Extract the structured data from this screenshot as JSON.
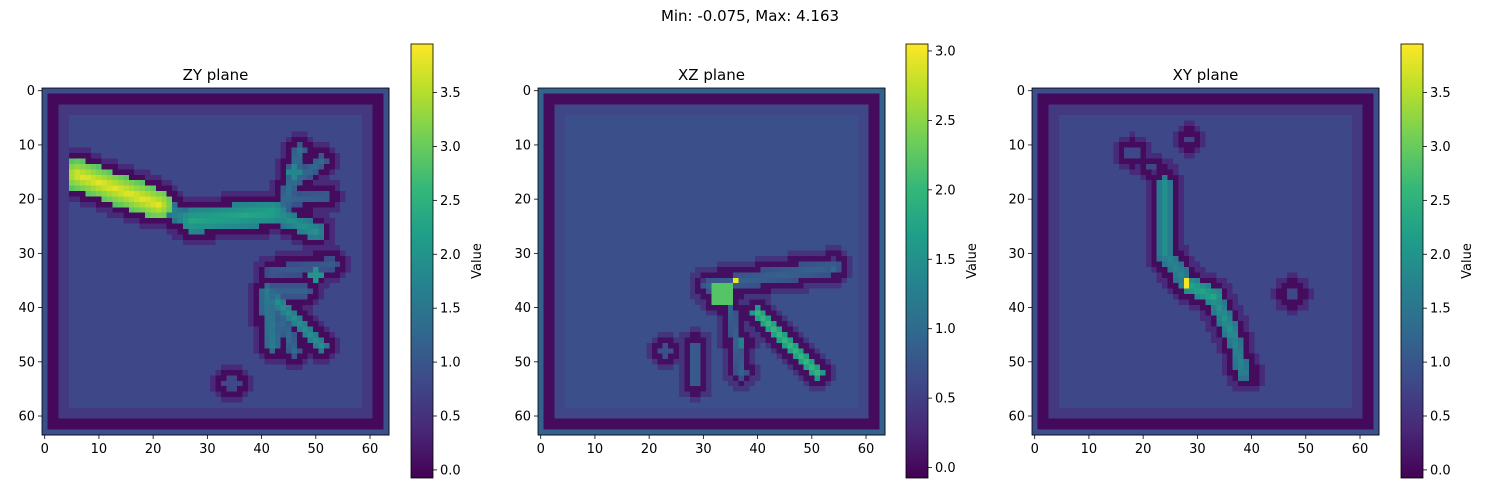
{
  "suptitle": "Min: -0.075, Max: 4.163",
  "colormap": {
    "name": "viridis",
    "stops": [
      "#440154",
      "#482878",
      "#3e4989",
      "#31688e",
      "#26828e",
      "#1f9e89",
      "#35b779",
      "#6ece58",
      "#b5de2b",
      "#fde725"
    ]
  },
  "chart_data": [
    {
      "type": "heatmap",
      "title": "ZY plane",
      "grid_size": 64,
      "axis_range": [
        0,
        63
      ],
      "x_ticks": [
        "0",
        "10",
        "20",
        "30",
        "40",
        "50",
        "60"
      ],
      "y_ticks": [
        "0",
        "10",
        "20",
        "30",
        "40",
        "50",
        "60"
      ],
      "value_range": [
        -0.075,
        3.95
      ],
      "background_value": 0.8,
      "colorbar": {
        "label": "Value",
        "ticks": [
          "0.0",
          "0.5",
          "1.0",
          "1.5",
          "2.0",
          "2.5",
          "3.0",
          "3.5"
        ]
      },
      "features": [
        {
          "x1": 6,
          "y1": 15.5,
          "x2": 21,
          "y2": 21,
          "w": 2.8,
          "v": 3.8
        },
        {
          "x1": 21,
          "y1": 21,
          "x2": 27,
          "y2": 24,
          "w": 1.6,
          "v": 1.8
        },
        {
          "x1": 27,
          "y1": 24,
          "x2": 42,
          "y2": 22.5,
          "w": 2.2,
          "v": 2.3
        },
        {
          "x1": 42,
          "y1": 22.5,
          "x2": 50,
          "y2": 26,
          "w": 1.5,
          "v": 2.0
        },
        {
          "x1": 44,
          "y1": 22,
          "x2": 47,
          "y2": 11,
          "w": 1.2,
          "v": 1.4
        },
        {
          "x1": 46,
          "y1": 17,
          "x2": 51,
          "y2": 13,
          "w": 1.1,
          "v": 1.3
        },
        {
          "x1": 46,
          "y1": 20,
          "x2": 52,
          "y2": 19.5,
          "w": 1.1,
          "v": 1.2
        },
        {
          "x1": 42,
          "y1": 33.5,
          "x2": 53,
          "y2": 32,
          "w": 1.2,
          "v": 1.1
        },
        {
          "x1": 41,
          "y1": 37,
          "x2": 48,
          "y2": 37,
          "w": 1.3,
          "v": 1.2
        },
        {
          "x1": 41,
          "y1": 37,
          "x2": 42,
          "y2": 47,
          "w": 1.4,
          "v": 1.6
        },
        {
          "x1": 43,
          "y1": 39,
          "x2": 51,
          "y2": 47,
          "w": 1.3,
          "v": 1.9
        },
        {
          "x1": 43,
          "y1": 40,
          "x2": 46,
          "y2": 48,
          "w": 1.1,
          "v": 1.3
        }
      ],
      "blobs": [
        {
          "x": 34.5,
          "y": 54,
          "r": 1.5,
          "v": 0.3
        },
        {
          "x": 46,
          "y": 15,
          "r": 1.2,
          "v": 1.8
        },
        {
          "x": 50,
          "y": 34,
          "r": 1.0,
          "v": 2.0
        }
      ]
    },
    {
      "type": "heatmap",
      "title": "XZ plane",
      "grid_size": 64,
      "axis_range": [
        0,
        63
      ],
      "x_ticks": [
        "0",
        "10",
        "20",
        "30",
        "40",
        "50",
        "60"
      ],
      "y_ticks": [
        "0",
        "10",
        "20",
        "30",
        "40",
        "50",
        "60"
      ],
      "value_range": [
        -0.075,
        3.05
      ],
      "background_value": 0.7,
      "colorbar": {
        "label": "Value",
        "ticks": [
          "0.0",
          "0.5",
          "1.0",
          "1.5",
          "2.0",
          "2.5",
          "3.0"
        ]
      },
      "features": [
        {
          "x1": 31,
          "y1": 36,
          "x2": 54,
          "y2": 32.5,
          "w": 1.5,
          "v": 0.9
        },
        {
          "x1": 40,
          "y1": 41,
          "x2": 51,
          "y2": 52,
          "w": 1.2,
          "v": 2.0
        },
        {
          "x1": 35,
          "y1": 40,
          "x2": 37,
          "y2": 52,
          "w": 1.0,
          "v": 0.9
        },
        {
          "x1": 28.5,
          "y1": 47,
          "x2": 28.5,
          "y2": 54,
          "w": 1.1,
          "v": 0.9
        }
      ],
      "blobs": [
        {
          "x": 33.5,
          "y": 37.5,
          "r": 2.4,
          "v": 2.2
        },
        {
          "x": 36,
          "y": 35,
          "r": 0.9,
          "v": 3.0
        },
        {
          "x": 23,
          "y": 48,
          "r": 1.3,
          "v": 0.5
        },
        {
          "x": 37,
          "y": 46.5,
          "r": 1.0,
          "v": 1.3
        },
        {
          "x": 54,
          "y": 33,
          "r": 0.8,
          "v": 1.0
        }
      ]
    },
    {
      "type": "heatmap",
      "title": "XY plane",
      "grid_size": 64,
      "axis_range": [
        0,
        63
      ],
      "x_ticks": [
        "0",
        "10",
        "20",
        "30",
        "40",
        "50",
        "60"
      ],
      "y_ticks": [
        "0",
        "10",
        "20",
        "30",
        "40",
        "50",
        "60"
      ],
      "value_range": [
        -0.075,
        3.95
      ],
      "background_value": 0.8,
      "colorbar": {
        "label": "Value",
        "ticks": [
          "0.0",
          "0.5",
          "1.0",
          "1.5",
          "2.0",
          "2.5",
          "3.0",
          "3.5"
        ]
      },
      "features": [
        {
          "x1": 24,
          "y1": 17,
          "x2": 24,
          "y2": 30,
          "w": 1.4,
          "v": 1.9
        },
        {
          "x1": 24,
          "y1": 30,
          "x2": 28.5,
          "y2": 36,
          "w": 1.6,
          "v": 1.8
        },
        {
          "x1": 28.5,
          "y1": 36,
          "x2": 33,
          "y2": 38,
          "w": 1.6,
          "v": 2.3
        },
        {
          "x1": 33,
          "y1": 38,
          "x2": 36.5,
          "y2": 45,
          "w": 1.4,
          "v": 2.0
        },
        {
          "x1": 36.5,
          "y1": 45,
          "x2": 38.5,
          "y2": 52,
          "w": 1.3,
          "v": 1.8
        },
        {
          "x1": 21.5,
          "y1": 14,
          "x2": 24,
          "y2": 16,
          "w": 0.8,
          "v": 0.6
        }
      ],
      "blobs": [
        {
          "x": 18,
          "y": 11.5,
          "r": 1.4,
          "v": 0.45
        },
        {
          "x": 28,
          "y": 35.5,
          "r": 0.9,
          "v": 3.9
        },
        {
          "x": 47.5,
          "y": 37.5,
          "r": 1.5,
          "v": 0.45
        },
        {
          "x": 28.5,
          "y": 9,
          "r": 1.0,
          "v": 0.6
        },
        {
          "x": 40,
          "y": 52.5,
          "r": 0.8,
          "v": 0.4
        }
      ]
    }
  ]
}
